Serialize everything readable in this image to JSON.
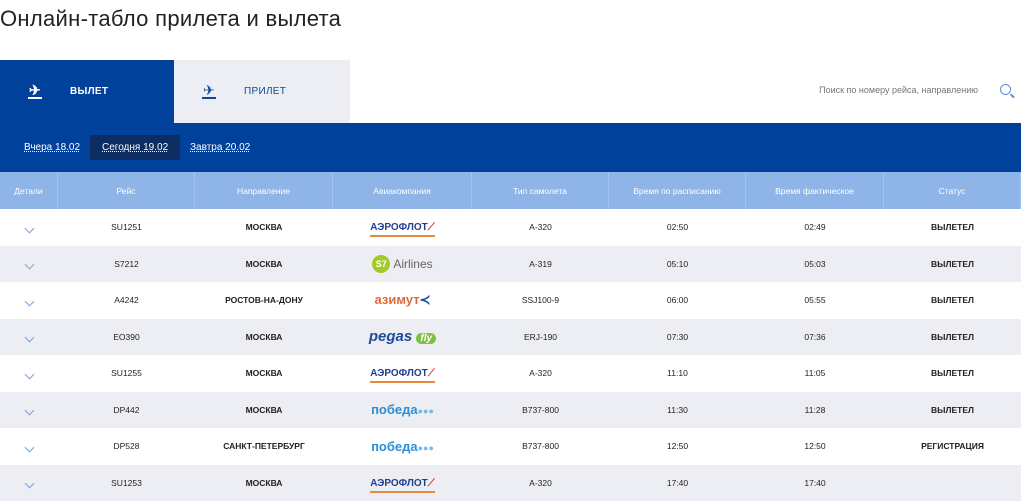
{
  "title": "Онлайн-табло прилета и вылета",
  "tabs": [
    {
      "label": "ВЫЛЕТ",
      "icon": "plane-takeoff-icon",
      "active": true
    },
    {
      "label": "ПРИЛЕТ",
      "icon": "plane-landing-icon",
      "active": false
    }
  ],
  "search": {
    "placeholder": "Поиск по номеру рейса, направлению",
    "icon": "search-icon"
  },
  "days": [
    {
      "label": "Вчера 18.02"
    },
    {
      "label": "Сегодня 19.02",
      "selected": true
    },
    {
      "label": "Завтра 20.02"
    }
  ],
  "columns": [
    "Детали",
    "Рейс",
    "Направление",
    "Авиакомпания",
    "Тип самолета",
    "Время по расписанию",
    "Время фактическое",
    "Статус"
  ],
  "rows": [
    {
      "flight": "SU1251",
      "dest": "МОСКВА",
      "airline": "АЭРОФЛОТ",
      "type": "A-320",
      "sched": "02:50",
      "actual": "02:49",
      "status": "ВЫЛЕТЕЛ"
    },
    {
      "flight": "S7212",
      "dest": "МОСКВА",
      "airline": "S7 Airlines",
      "type": "A-319",
      "sched": "05:10",
      "actual": "05:03",
      "status": "ВЫЛЕТЕЛ"
    },
    {
      "flight": "A4242",
      "dest": "РОСТОВ-НА-ДОНУ",
      "airline": "азимут",
      "type": "SSJ100-9",
      "sched": "06:00",
      "actual": "05:55",
      "status": "ВЫЛЕТЕЛ"
    },
    {
      "flight": "EO390",
      "dest": "МОСКВА",
      "airline": "pegas fly",
      "type": "ERJ-190",
      "sched": "07:30",
      "actual": "07:36",
      "status": "ВЫЛЕТЕЛ"
    },
    {
      "flight": "SU1255",
      "dest": "МОСКВА",
      "airline": "АЭРОФЛОТ",
      "type": "A-320",
      "sched": "11:10",
      "actual": "11:05",
      "status": "ВЫЛЕТЕЛ"
    },
    {
      "flight": "DP442",
      "dest": "МОСКВА",
      "airline": "победа",
      "type": "B737-800",
      "sched": "11:30",
      "actual": "11:28",
      "status": "ВЫЛЕТЕЛ"
    },
    {
      "flight": "DP528",
      "dest": "САНКТ-ПЕТЕРБУРГ",
      "airline": "победа",
      "type": "B737-800",
      "sched": "12:50",
      "actual": "12:50",
      "status": "РЕГИСТРАЦИЯ"
    },
    {
      "flight": "SU1253",
      "dest": "МОСКВА",
      "airline": "АЭРОФЛОТ",
      "type": "A-320",
      "sched": "17:40",
      "actual": "17:40",
      "status": ""
    }
  ],
  "colors": {
    "brand": "#00429b",
    "header": "#8fb4e8",
    "stripe": "#eceef3"
  }
}
